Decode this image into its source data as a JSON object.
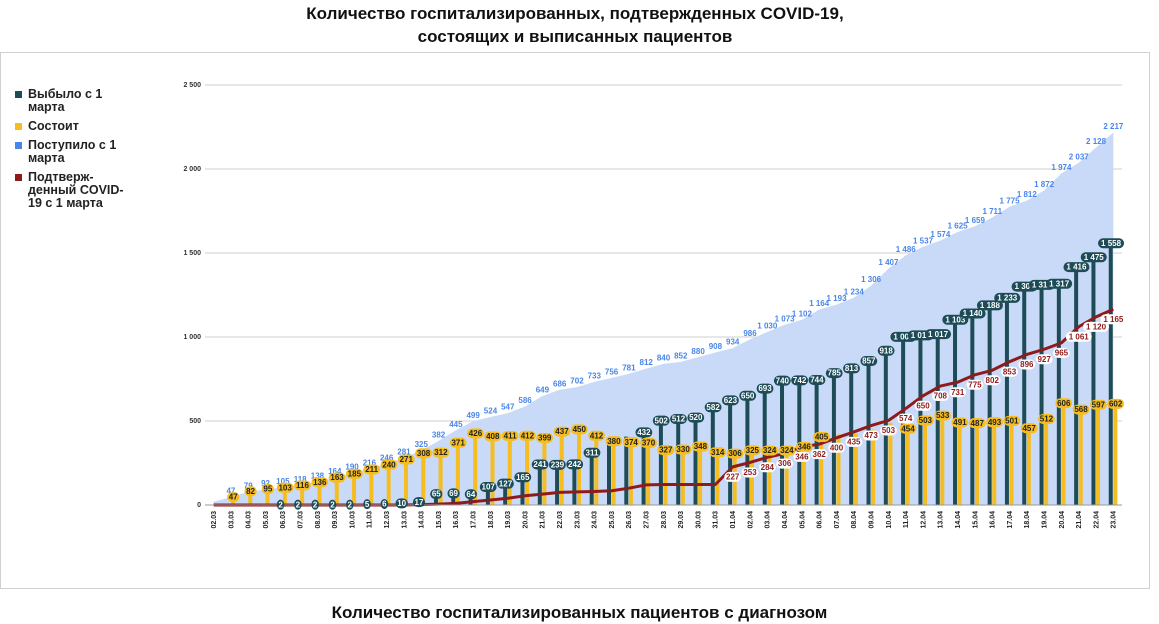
{
  "chart_data": {
    "type": "combo",
    "title": "Количество госпитализированных, подтвержденных COVID-19, состоящих и выписанных пациентов",
    "footer": "Количество госпитализированных пациентов с диагнозом",
    "categories": [
      "02.03",
      "03.03",
      "04.03",
      "05.03",
      "06.03",
      "07.03",
      "08.03",
      "09.03",
      "10.03",
      "11.03",
      "12.03",
      "13.03",
      "14.03",
      "15.03",
      "16.03",
      "17.03",
      "18.03",
      "19.03",
      "20.03",
      "21.03",
      "22.03",
      "23.03",
      "24.03",
      "25.03",
      "26.03",
      "27.03",
      "28.03",
      "29.03",
      "30.03",
      "31.03",
      "01.04",
      "02.04",
      "03.04",
      "04.04",
      "05.04",
      "06.04",
      "07.04",
      "08.04",
      "09.04",
      "10.04",
      "11.04",
      "12.04",
      "13.04",
      "14.04",
      "15.04",
      "16.04",
      "17.04",
      "18.04",
      "19.04",
      "20.04",
      "21.04",
      "22.04",
      "23.04"
    ],
    "ylim": [
      0,
      2500
    ],
    "yticks": [
      0,
      500,
      {
        "value": 1000,
        "label": "1 000"
      },
      {
        "value": 1500,
        "label": "1 500"
      },
      {
        "value": 2000,
        "label": "2 000"
      },
      {
        "value": 2500,
        "label": "2 500"
      }
    ],
    "grid": true,
    "legend": "left",
    "series": [
      {
        "name": "Выбыло с 1 марта",
        "type": "bar",
        "color": "#1d4c57",
        "values": [
          0,
          0,
          0,
          0,
          2,
          2,
          2,
          2,
          2,
          5,
          6,
          10,
          17,
          65,
          69,
          64,
          107,
          127,
          165,
          241,
          239,
          242,
          311,
          376,
          407,
          432,
          502,
          512,
          520,
          582,
          623,
          650,
          693,
          740,
          742,
          744,
          785,
          813,
          857,
          918,
          1001,
          1010,
          1017,
          1103,
          1140,
          1188,
          1233,
          1300,
          1310,
          1317,
          1416,
          1475,
          1558
        ],
        "value_labels": [
          null,
          null,
          null,
          null,
          "2",
          "2",
          "2",
          "2",
          "2",
          "5",
          "6",
          "10",
          "17",
          "65",
          "69",
          "64",
          "107",
          "127",
          "165",
          "241",
          "239",
          "242",
          "311",
          null,
          null,
          "432",
          "502",
          "512",
          "520",
          "582",
          "623",
          "650",
          "693",
          "740",
          "742",
          "744",
          "785",
          "813",
          "857",
          "918",
          "1 001",
          "1 010",
          "1 017",
          "1 103",
          "1 140",
          "1 188",
          "1 233",
          "1 300",
          "1 310",
          "1 317",
          "1 416",
          "1 475",
          "1 558"
        ]
      },
      {
        "name": "Состоит",
        "type": "bar",
        "color": "#f5bd1f",
        "values": [
          10,
          47,
          82,
          95,
          103,
          116,
          136,
          163,
          185,
          211,
          240,
          271,
          308,
          312,
          371,
          426,
          408,
          411,
          412,
          399,
          437,
          450,
          412,
          380,
          374,
          370,
          327,
          330,
          348,
          314,
          306,
          325,
          324,
          324,
          346,
          405,
          420,
          425,
          449,
          489,
          454,
          503,
          533,
          491,
          487,
          493,
          501,
          457,
          512,
          606,
          568,
          597,
          602
        ],
        "value_labels": [
          null,
          "47",
          "82",
          "95",
          "103",
          "116",
          "136",
          "163",
          "185",
          "211",
          "240",
          "271",
          "308",
          "312",
          "371",
          "426",
          "408",
          "411",
          "412",
          "399",
          "437",
          "450",
          "412",
          "380",
          "374",
          "370",
          "327",
          "330",
          "348",
          "314",
          "306",
          "325",
          "324",
          "324",
          "346",
          "405",
          null,
          null,
          null,
          null,
          "454",
          "503",
          "533",
          "491",
          "487",
          "493",
          "501",
          "457",
          "512",
          "606",
          "568",
          "597",
          "602"
        ]
      },
      {
        "name": "Поступило с 1 марта",
        "type": "area",
        "color": "#4a86e8",
        "fill": "#c9daf8",
        "values": [
          20,
          47,
          79,
          92,
          105,
          118,
          138,
          164,
          190,
          216,
          246,
          281,
          325,
          382,
          445,
          499,
          524,
          547,
          586,
          649,
          686,
          702,
          733,
          756,
          781,
          812,
          840,
          852,
          880,
          908,
          934,
          986,
          1030,
          1073,
          1102,
          1164,
          1193,
          1234,
          1306,
          1407,
          1486,
          1537,
          1574,
          1625,
          1659,
          1711,
          1775,
          1812,
          1872,
          1974,
          2037,
          2128,
          2217
        ],
        "value_labels": [
          null,
          "47",
          "79",
          "92",
          "105",
          "118",
          "138",
          "164",
          "190",
          "216",
          "246",
          "281",
          "325",
          "382",
          "445",
          "499",
          "524",
          "547",
          "586",
          "649",
          "686",
          "702",
          "733",
          "756",
          "781",
          "812",
          "840",
          "852",
          "880",
          "908",
          "934",
          "986",
          "1 030",
          "1 073",
          "1 102",
          "1 164",
          "1 193",
          "1 234",
          "1 306",
          "1 407",
          "1 486",
          "1 537",
          "1 574",
          "1 625",
          "1 659",
          "1 711",
          "1 775",
          "1 812",
          "1 872",
          "1 974",
          "2 037",
          "2 128",
          "2 217"
        ]
      },
      {
        "name": "Подтверж-денный COVID-19 с 1 марта",
        "type": "line",
        "color": "#8e1b1b",
        "values": [
          0,
          0,
          0,
          0,
          0,
          0,
          0,
          0,
          0,
          0,
          0,
          0,
          2,
          5,
          10,
          20,
          30,
          40,
          55,
          65,
          75,
          78,
          80,
          85,
          100,
          120,
          122,
          122,
          122,
          122,
          227,
          253,
          284,
          306,
          346,
          362,
          400,
          435,
          473,
          503,
          574,
          650,
          708,
          731,
          775,
          802,
          853,
          896,
          927,
          965,
          1061,
          1120,
          1165
        ],
        "value_labels": [
          null,
          null,
          null,
          null,
          null,
          null,
          null,
          null,
          null,
          null,
          null,
          null,
          null,
          null,
          null,
          null,
          null,
          null,
          null,
          null,
          null,
          null,
          null,
          null,
          null,
          null,
          null,
          null,
          null,
          null,
          "227",
          "253",
          "284",
          "306",
          "346",
          "362",
          "400",
          "435",
          "473",
          "503",
          "574",
          "650",
          "708",
          "731",
          "775",
          "802",
          "853",
          "896",
          "927",
          "965",
          "1 061",
          "1 120",
          "1 165"
        ]
      }
    ]
  }
}
